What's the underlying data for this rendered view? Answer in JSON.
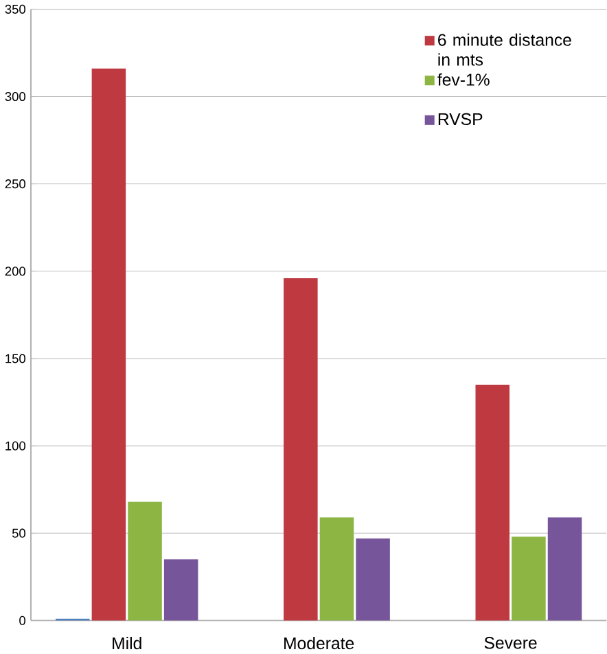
{
  "chart_data": {
    "type": "bar",
    "categories": [
      "Mild",
      "Moderate",
      "Severe"
    ],
    "series": [
      {
        "color": "#4f81bd",
        "values": [
          1,
          null,
          null
        ]
      },
      {
        "name": "6 minute distance in mts",
        "color": "#be3a40",
        "values": [
          316,
          196,
          135
        ]
      },
      {
        "name": "fev-1%",
        "color": "#8db544",
        "values": [
          68,
          59,
          48
        ]
      },
      {
        "name": "RVSP",
        "color": "#77559b",
        "values": [
          35,
          47,
          59
        ]
      }
    ],
    "ylim": [
      0,
      350
    ],
    "yticks": [
      0,
      50,
      100,
      150,
      200,
      250,
      300,
      350
    ],
    "grid": "y",
    "legend": "top right"
  }
}
